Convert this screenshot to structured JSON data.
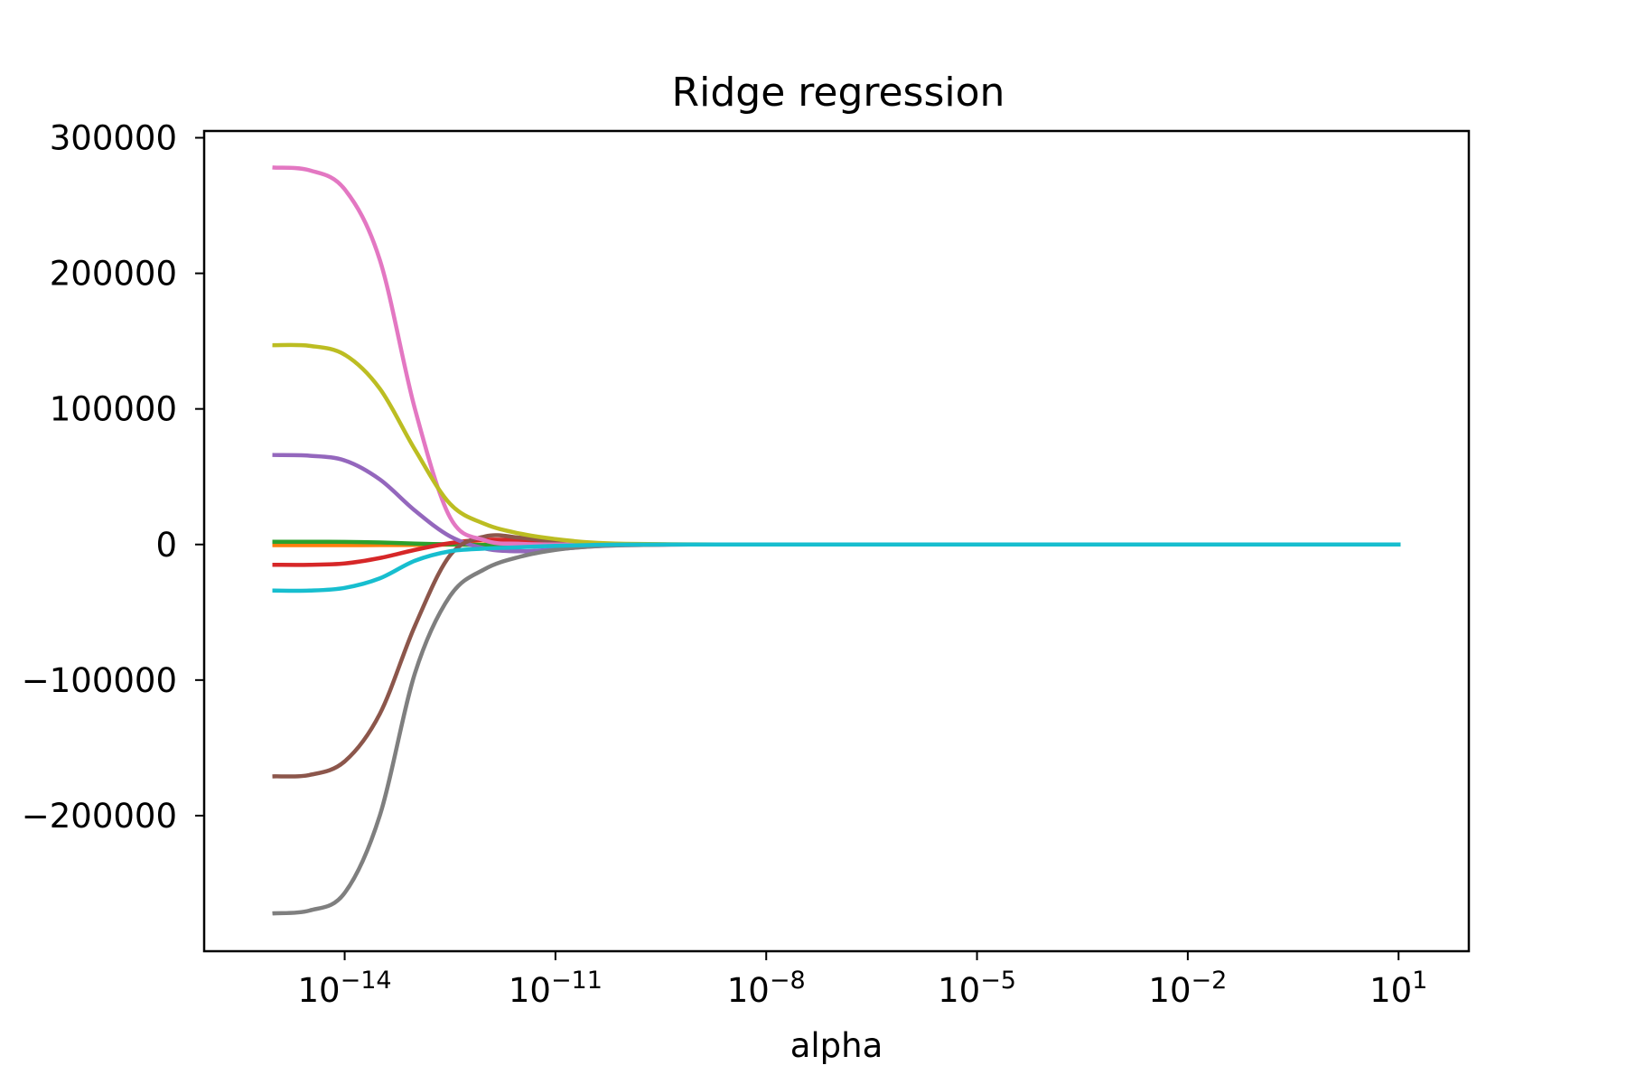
{
  "chart_data": {
    "type": "line",
    "title": "Ridge regression",
    "xlabel": "alpha",
    "ylabel": "",
    "xscale": "log",
    "xlim": [
      1e-16,
      100.0
    ],
    "ylim": [
      -300000,
      305000
    ],
    "grid": false,
    "legend": "none",
    "x_tick_base": "10",
    "x_ticks": [
      {
        "value": 1e-14,
        "exp": "−14"
      },
      {
        "value": 1e-11,
        "exp": "−11"
      },
      {
        "value": 1e-08,
        "exp": "−8"
      },
      {
        "value": 1e-05,
        "exp": "−5"
      },
      {
        "value": 0.01,
        "exp": "−2"
      },
      {
        "value": 10,
        "exp": "1"
      }
    ],
    "y_ticks": [
      {
        "value": 300000,
        "label": "300000"
      },
      {
        "value": 200000,
        "label": "200000"
      },
      {
        "value": 100000,
        "label": "100000"
      },
      {
        "value": 0,
        "label": "0"
      },
      {
        "value": -100000,
        "label": "−100000"
      },
      {
        "value": -200000,
        "label": "−200000"
      }
    ],
    "x": [
      1e-15,
      3.16e-15,
      1e-14,
      3.16e-14,
      1e-13,
      3.16e-13,
      1e-12,
      3.16e-12,
      1e-11,
      3.16e-11,
      1e-10,
      1e-09,
      1e-08,
      1e-06,
      0.0001,
      0.01,
      1,
      10
    ],
    "series": [
      {
        "color": "#1f77b4",
        "values": [
          500,
          500,
          500,
          450,
          300,
          100,
          -200,
          -300,
          -200,
          -100,
          -50,
          0,
          0,
          0,
          0,
          0,
          0,
          0
        ]
      },
      {
        "color": "#ff7f0e",
        "values": [
          -500,
          -500,
          -500,
          -450,
          -300,
          -100,
          100,
          200,
          100,
          50,
          0,
          0,
          0,
          0,
          0,
          0,
          0,
          0
        ]
      },
      {
        "color": "#2ca02c",
        "values": [
          2000,
          2000,
          1900,
          1500,
          700,
          0,
          -300,
          -300,
          -200,
          -100,
          0,
          0,
          0,
          0,
          0,
          0,
          0,
          0
        ]
      },
      {
        "color": "#d62728",
        "values": [
          -15000,
          -15000,
          -14000,
          -10000,
          -4000,
          1000,
          3500,
          3000,
          1500,
          500,
          100,
          0,
          0,
          0,
          0,
          0,
          0,
          0
        ]
      },
      {
        "color": "#9467bd",
        "values": [
          66000,
          65500,
          62000,
          48000,
          25000,
          6000,
          -3000,
          -5000,
          -3500,
          -1500,
          -500,
          0,
          0,
          0,
          0,
          0,
          0,
          0
        ]
      },
      {
        "color": "#8c564b",
        "values": [
          -171000,
          -170000,
          -160000,
          -125000,
          -60000,
          -8000,
          6000,
          5000,
          2000,
          500,
          100,
          0,
          0,
          0,
          0,
          0,
          0,
          0
        ]
      },
      {
        "color": "#e377c2",
        "values": [
          278000,
          276000,
          262000,
          210000,
          100000,
          20000,
          3000,
          500,
          0,
          0,
          0,
          0,
          0,
          0,
          0,
          0,
          0,
          0
        ]
      },
      {
        "color": "#7f7f7f",
        "values": [
          -272000,
          -270000,
          -257000,
          -200000,
          -95000,
          -38000,
          -18000,
          -9000,
          -4000,
          -1500,
          -500,
          0,
          0,
          0,
          0,
          0,
          0,
          0
        ]
      },
      {
        "color": "#bcbd22",
        "values": [
          147000,
          146500,
          140000,
          115000,
          70000,
          30000,
          15000,
          8000,
          4000,
          1500,
          500,
          50,
          0,
          0,
          0,
          0,
          0,
          0
        ]
      },
      {
        "color": "#17becf",
        "values": [
          -34000,
          -34000,
          -32000,
          -25000,
          -12000,
          -5000,
          -3000,
          -2000,
          -1000,
          -400,
          -100,
          0,
          0,
          0,
          0,
          0,
          0,
          0
        ]
      }
    ]
  }
}
